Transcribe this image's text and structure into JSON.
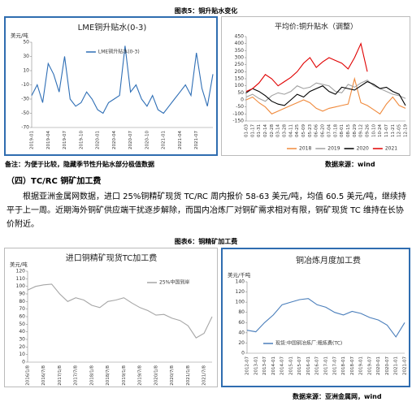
{
  "caption5": "图表5：铜升贴水变化",
  "charts": [
    {
      "type": "line",
      "title": "LME铜升贴水(0-3)",
      "y_label": "美元/吨",
      "categories": [
        "2019-01",
        null,
        null,
        "2019-04",
        null,
        null,
        "2019-07",
        null,
        null,
        "2019-10",
        null,
        null,
        "2020-01",
        null,
        null,
        "2020-04",
        null,
        null,
        "2020-07",
        null,
        null,
        "2020-10",
        null,
        null,
        "2021-01",
        null,
        null,
        "2021-04",
        null,
        null,
        "2021-07",
        null,
        null,
        null
      ],
      "series": [
        {
          "name": "LME铜升贴水(0-3)",
          "color": "#2e6eb5",
          "values": [
            -25,
            -10,
            -35,
            20,
            5,
            -20,
            30,
            -30,
            -40,
            -35,
            -20,
            -30,
            -45,
            -50,
            -35,
            -30,
            -25,
            45,
            -20,
            -10,
            -30,
            -40,
            -25,
            -45,
            -50,
            -40,
            -30,
            -20,
            -10,
            -25,
            35,
            -15,
            -40,
            5
          ]
        }
      ],
      "ylim": [
        -70,
        50
      ],
      "yticks": [
        -70,
        -50,
        -30,
        -10,
        10,
        30,
        50
      ],
      "legend": "upper-center"
    },
    {
      "type": "line",
      "title": "平均价:铜升贴水（调整）",
      "categories": [
        "01-03",
        "01-17",
        "01-31",
        "02-14",
        "02-28",
        "03-14",
        "03-28",
        "04-11",
        "04-25",
        "05-09",
        "05-23",
        "06-06",
        "06-20",
        "07-04",
        "07-18",
        "08-01",
        "08-15",
        "08-29",
        "09-12",
        "09-26",
        "10-10",
        "10-24",
        "11-07",
        "11-21",
        "12-05",
        "12-19"
      ],
      "series": [
        {
          "name": "2018",
          "color": "#f08a3c",
          "values": [
            0,
            20,
            -20,
            -50,
            -100,
            -80,
            -60,
            -40,
            -20,
            0,
            -20,
            -60,
            -80,
            -60,
            -50,
            -40,
            -30,
            150,
            -20,
            -40,
            -70,
            -100,
            -30,
            20,
            -40,
            -60
          ]
        },
        {
          "name": "2019",
          "color": "#a0a0a0",
          "values": [
            20,
            40,
            10,
            -10,
            30,
            50,
            40,
            60,
            100,
            80,
            90,
            120,
            110,
            100,
            60,
            50,
            110,
            90,
            120,
            140,
            100,
            80,
            60,
            40,
            30,
            10
          ]
        },
        {
          "name": "2020",
          "color": "#000000",
          "values": [
            50,
            80,
            60,
            30,
            -10,
            -30,
            -40,
            0,
            40,
            20,
            60,
            80,
            100,
            60,
            40,
            90,
            80,
            70,
            100,
            130,
            110,
            80,
            90,
            60,
            40,
            -40
          ]
        },
        {
          "name": "2021",
          "color": "#e00000",
          "values": [
            60,
            80,
            120,
            180,
            150,
            100,
            130,
            160,
            200,
            260,
            300,
            230,
            270,
            300,
            280,
            260,
            220,
            300,
            400,
            200,
            null,
            null,
            null,
            null,
            null,
            null
          ]
        }
      ],
      "ylim": [
        -150,
        450
      ],
      "yticks": [
        -150,
        -100,
        -50,
        0,
        50,
        100,
        150,
        200,
        250,
        300,
        350,
        400,
        450
      ],
      "legend": "bottom"
    },
    {
      "type": "line",
      "title": "进口铜精矿现货TC加工费",
      "y_label": "美元/吨",
      "categories": [
        "2016/1/8",
        null,
        "2016/7/8",
        null,
        "2017/1/8",
        null,
        "2017/7/8",
        null,
        "2018/1/8",
        null,
        "2018/7/8",
        null,
        "2019/1/8",
        null,
        "2019/7/8",
        null,
        "2020/1/8",
        null,
        "2020/7/8",
        null,
        "2021/1/8",
        null,
        "2021/7/8",
        null
      ],
      "series": [
        {
          "name": "25%中国到岸",
          "color": "#a6a6a6",
          "values": [
            95,
            100,
            102,
            103,
            90,
            80,
            85,
            82,
            75,
            72,
            80,
            82,
            85,
            78,
            72,
            68,
            62,
            63,
            58,
            55,
            48,
            32,
            38,
            60
          ]
        }
      ],
      "ylim": [
        0,
        120
      ],
      "yticks": [
        0,
        10,
        20,
        30,
        40,
        50,
        60,
        70,
        80,
        90,
        100,
        110,
        120
      ],
      "legend": "upper-right"
    },
    {
      "type": "line",
      "title": "铜冶炼月度加工费",
      "y_label": "美元/千吨",
      "categories": [
        "2012-07",
        "2013-01",
        "2013-07",
        "2014-01",
        "2014-07",
        "2015-01",
        "2015-07",
        "2016-01",
        "2016-07",
        "2017-01",
        "2017-07",
        "2018-01",
        "2018-07",
        "2019-01",
        "2019-07",
        "2020-01",
        "2020-07",
        "2021-01",
        "2021-07"
      ],
      "series": [
        {
          "name": "现货:中国铜冶炼厂:粗炼费(TC)",
          "color": "#4a7ebb",
          "values": [
            45,
            42,
            60,
            75,
            95,
            100,
            105,
            107,
            95,
            90,
            80,
            75,
            82,
            78,
            70,
            65,
            55,
            32,
            60
          ]
        }
      ],
      "ylim": [
        0,
        140
      ],
      "yticks": [
        0,
        20,
        40,
        60,
        80,
        100,
        120,
        140
      ],
      "legend": "lower-center"
    }
  ],
  "note": "备注：为便于比较，隐藏季节性升贴水部分极值数据",
  "source1": "数据来源：wind",
  "section": "（四）TC/RC 铜矿加工费",
  "paragraph": "根据亚洲金属网数据，进口 25%铜精矿现货 TC/RC 周内报价 58-63 美元/吨，均值 60.5 美元/吨，继续持平于上一周。近期海外铜矿供应端干扰逐步解除，而国内冶炼厂对铜矿需求相对有限，铜矿现货 TC 维持在长协价附近。",
  "caption6": "图表6：铜精矿加工费",
  "source2": "数据来源：亚洲金属网，wind"
}
